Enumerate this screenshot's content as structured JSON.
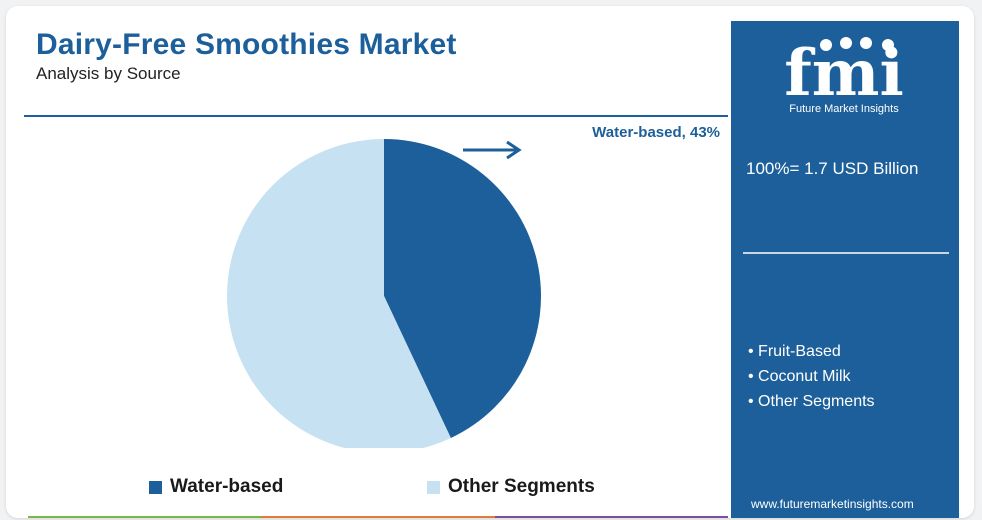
{
  "header": {
    "title": "Dairy-Free Smoothies Market",
    "subtitle": "Analysis by Source"
  },
  "callout": "Water-based, 43%",
  "chart_data": {
    "type": "pie",
    "title": "Dairy-Free Smoothies Market",
    "subtitle": "Analysis by Source",
    "slices": [
      {
        "name": "Water-based",
        "value": 43,
        "color": "#1d5f9a"
      },
      {
        "name": "Other Segments",
        "value": 57,
        "color": "#c6e2f2"
      }
    ],
    "data_labels": [
      "Water-based, 43%"
    ],
    "legend": [
      "Water-based",
      "Other Segments"
    ],
    "legend_position": "bottom"
  },
  "panel": {
    "logo_text": "fmi",
    "logo_subtitle": "Future Market Insights",
    "total": "100%= 1.7 USD Billion",
    "segments": [
      "Fruit-Based",
      "Coconut Milk",
      "Other Segments"
    ],
    "website": "www.futuremarketinsights.com",
    "color": "#1d5f9a"
  },
  "bottom_bar_colors": [
    "#7ab648",
    "#e07b39",
    "#7b4fa0"
  ]
}
